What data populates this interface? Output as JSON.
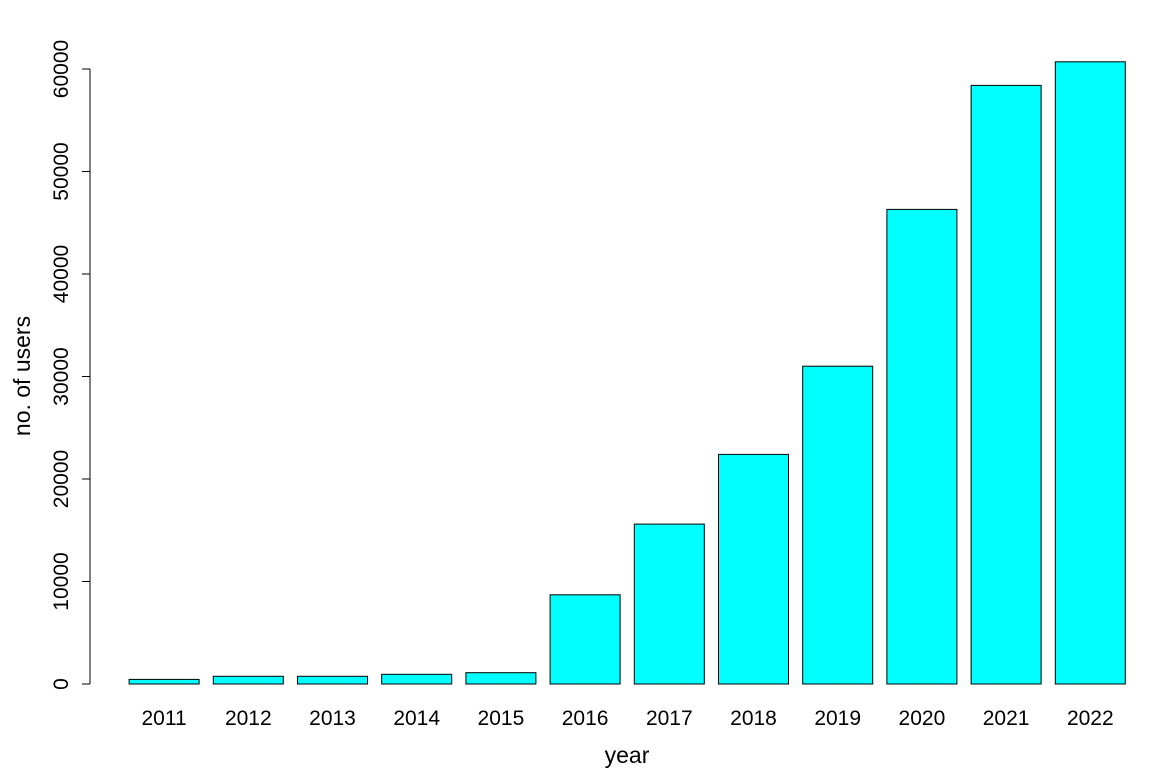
{
  "chart_data": {
    "type": "bar",
    "title": "",
    "xlabel": "year",
    "ylabel": "no. of users",
    "categories": [
      "2011",
      "2012",
      "2013",
      "2014",
      "2015",
      "2016",
      "2017",
      "2018",
      "2019",
      "2020",
      "2021",
      "2022"
    ],
    "values": [
      450,
      750,
      750,
      950,
      1100,
      8700,
      15600,
      22400,
      31000,
      46300,
      58400,
      60700
    ],
    "ylim": [
      0,
      60000
    ],
    "yticks": [
      0,
      10000,
      20000,
      30000,
      40000,
      50000,
      60000
    ],
    "bar_color": "#00FFFF",
    "bar_border_color": "#000000",
    "grid": false,
    "legend": "none"
  }
}
